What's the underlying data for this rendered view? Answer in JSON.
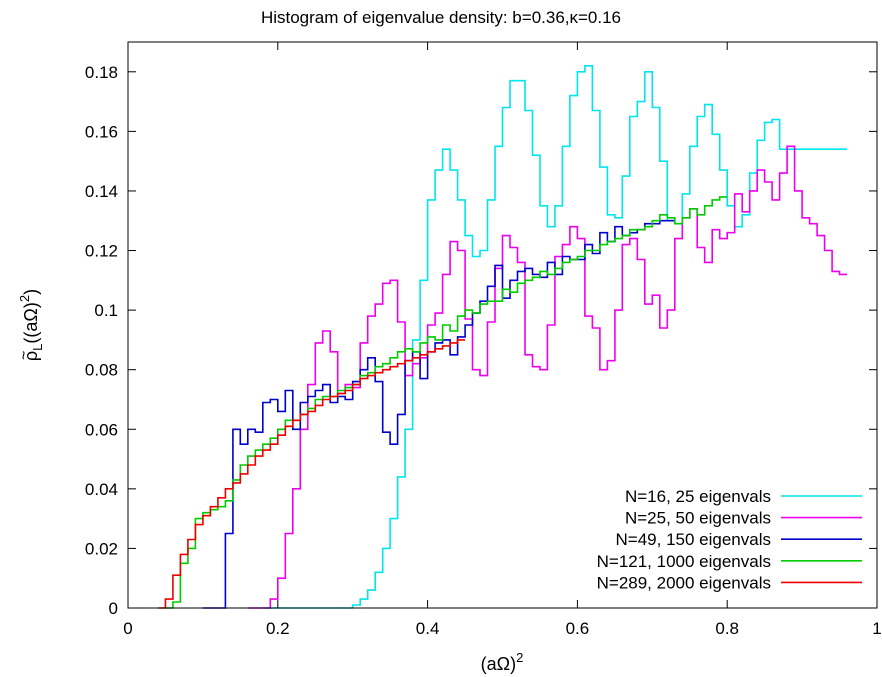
{
  "chart_data": {
    "type": "line",
    "title": "Histogram of eigenvalue density: b=0.36,κ=0.16",
    "xlabel_base": "(aΩ)",
    "xlabel_sup": "2",
    "ylabel_rho": "ρ",
    "ylabel_sub": "L",
    "ylabel_arg": "((aΩ)",
    "ylabel_sup": "2",
    "ylabel_close": ")",
    "xlim": [
      0,
      1
    ],
    "ylim": [
      0,
      0.19
    ],
    "xticks": [
      0,
      0.2,
      0.4,
      0.6,
      0.8,
      1
    ],
    "xtick_labels": [
      "0",
      "0.2",
      "0.4",
      "0.6",
      "0.8",
      "1"
    ],
    "yticks": [
      0,
      0.02,
      0.04,
      0.06,
      0.08,
      0.1,
      0.12,
      0.14,
      0.16,
      0.18
    ],
    "ytick_labels": [
      "0",
      "0.02",
      "0.04",
      "0.06",
      "0.08",
      "0.1",
      "0.12",
      "0.14",
      "0.16",
      "0.18"
    ],
    "grid": false,
    "legend_position": "bottom-right",
    "series": [
      {
        "name": "N=16, 25 eigenvals",
        "color": "#00e5ee",
        "step": "post",
        "x": [
          0.18,
          0.3,
          0.31,
          0.32,
          0.33,
          0.34,
          0.35,
          0.36,
          0.37,
          0.38,
          0.39,
          0.4,
          0.41,
          0.42,
          0.43,
          0.44,
          0.45,
          0.46,
          0.47,
          0.48,
          0.49,
          0.5,
          0.51,
          0.52,
          0.53,
          0.54,
          0.55,
          0.56,
          0.57,
          0.58,
          0.59,
          0.6,
          0.61,
          0.62,
          0.63,
          0.64,
          0.65,
          0.66,
          0.67,
          0.68,
          0.69,
          0.7,
          0.71,
          0.72,
          0.73,
          0.74,
          0.75,
          0.76,
          0.77,
          0.78,
          0.79,
          0.8,
          0.81,
          0.82,
          0.83,
          0.84,
          0.85,
          0.86,
          0.87,
          0.88,
          0.89,
          0.9,
          0.91,
          0.92,
          0.93,
          0.94,
          0.95
        ],
        "y": [
          0,
          0.001,
          0.003,
          0.006,
          0.012,
          0.02,
          0.03,
          0.044,
          0.06,
          0.09,
          0.11,
          0.137,
          0.147,
          0.154,
          0.147,
          0.137,
          0.125,
          0.118,
          0.12,
          0.137,
          0.155,
          0.168,
          0.177,
          0.177,
          0.167,
          0.152,
          0.135,
          0.128,
          0.135,
          0.155,
          0.172,
          0.18,
          0.182,
          0.167,
          0.148,
          0.132,
          0.131,
          0.145,
          0.165,
          0.17,
          0.18,
          0.168,
          0.15,
          0.13,
          0.129,
          0.139,
          0.155,
          0.165,
          0.169,
          0.159,
          0.147,
          0.135,
          0.128,
          0.132,
          0.146,
          0.157,
          0.163,
          0.164,
          0.154,
          0.154,
          0.154,
          0.154,
          0.154,
          0.154,
          0.154,
          0.154,
          0.154
        ]
      },
      {
        "name": "N=25, 50 eigenvals",
        "color": "#ee00ee",
        "step": "post",
        "x": [
          0.16,
          0.19,
          0.2,
          0.21,
          0.22,
          0.23,
          0.24,
          0.25,
          0.26,
          0.27,
          0.28,
          0.29,
          0.3,
          0.31,
          0.32,
          0.33,
          0.34,
          0.35,
          0.36,
          0.37,
          0.38,
          0.39,
          0.4,
          0.41,
          0.42,
          0.43,
          0.44,
          0.45,
          0.46,
          0.47,
          0.48,
          0.49,
          0.5,
          0.51,
          0.52,
          0.53,
          0.54,
          0.55,
          0.56,
          0.57,
          0.58,
          0.59,
          0.6,
          0.61,
          0.62,
          0.63,
          0.64,
          0.65,
          0.66,
          0.67,
          0.68,
          0.69,
          0.7,
          0.71,
          0.72,
          0.73,
          0.74,
          0.75,
          0.76,
          0.77,
          0.78,
          0.79,
          0.8,
          0.81,
          0.82,
          0.83,
          0.84,
          0.85,
          0.86,
          0.87,
          0.88,
          0.89,
          0.9,
          0.91,
          0.92,
          0.93,
          0.94,
          0.95
        ],
        "y": [
          0,
          0.003,
          0.01,
          0.025,
          0.04,
          0.06,
          0.075,
          0.089,
          0.093,
          0.086,
          0.072,
          0.075,
          0.074,
          0.089,
          0.098,
          0.102,
          0.109,
          0.11,
          0.096,
          0.078,
          0.082,
          0.084,
          0.095,
          0.099,
          0.112,
          0.123,
          0.12,
          0.097,
          0.08,
          0.078,
          0.096,
          0.114,
          0.125,
          0.121,
          0.116,
          0.085,
          0.081,
          0.08,
          0.095,
          0.118,
          0.122,
          0.128,
          0.124,
          0.098,
          0.094,
          0.08,
          0.083,
          0.1,
          0.122,
          0.124,
          0.117,
          0.102,
          0.105,
          0.094,
          0.1,
          0.124,
          0.131,
          0.134,
          0.121,
          0.116,
          0.127,
          0.124,
          0.126,
          0.139,
          0.133,
          0.14,
          0.147,
          0.143,
          0.137,
          0.146,
          0.155,
          0.14,
          0.131,
          0.129,
          0.125,
          0.12,
          0.113,
          0.112
        ]
      },
      {
        "name": "N=49, 150 eigenvals",
        "color": "#0000cc",
        "step": "post",
        "x": [
          0.1,
          0.13,
          0.14,
          0.15,
          0.16,
          0.17,
          0.18,
          0.19,
          0.2,
          0.21,
          0.22,
          0.23,
          0.24,
          0.25,
          0.26,
          0.27,
          0.28,
          0.29,
          0.3,
          0.31,
          0.32,
          0.33,
          0.34,
          0.35,
          0.36,
          0.37,
          0.38,
          0.39,
          0.4,
          0.41,
          0.42,
          0.43,
          0.44,
          0.45,
          0.46,
          0.47,
          0.48,
          0.49,
          0.5,
          0.51,
          0.52,
          0.53,
          0.54,
          0.55,
          0.56,
          0.57,
          0.58,
          0.59,
          0.6,
          0.61,
          0.62,
          0.63,
          0.64,
          0.65,
          0.66,
          0.67,
          0.68,
          0.69,
          0.7,
          0.71,
          0.72
        ],
        "y": [
          0,
          0.025,
          0.06,
          0.055,
          0.06,
          0.059,
          0.069,
          0.07,
          0.066,
          0.073,
          0.06,
          0.069,
          0.071,
          0.073,
          0.075,
          0.069,
          0.071,
          0.07,
          0.076,
          0.08,
          0.084,
          0.076,
          0.059,
          0.055,
          0.065,
          0.083,
          0.086,
          0.077,
          0.086,
          0.089,
          0.09,
          0.085,
          0.091,
          0.095,
          0.099,
          0.103,
          0.108,
          0.115,
          0.104,
          0.11,
          0.113,
          0.114,
          0.112,
          0.111,
          0.116,
          0.112,
          0.118,
          0.117,
          0.117,
          0.122,
          0.119,
          0.126,
          0.123,
          0.128,
          0.125,
          0.126,
          0.127,
          0.129,
          0.129,
          0.13,
          0.13
        ]
      },
      {
        "name": "N=121, 1000 eigenvals",
        "color": "#00cc00",
        "step": "post",
        "x": [
          0.05,
          0.06,
          0.07,
          0.08,
          0.09,
          0.1,
          0.11,
          0.12,
          0.13,
          0.14,
          0.15,
          0.16,
          0.17,
          0.18,
          0.19,
          0.2,
          0.21,
          0.22,
          0.23,
          0.24,
          0.25,
          0.26,
          0.27,
          0.28,
          0.29,
          0.3,
          0.31,
          0.32,
          0.33,
          0.34,
          0.35,
          0.36,
          0.37,
          0.38,
          0.39,
          0.4,
          0.41,
          0.42,
          0.43,
          0.44,
          0.45,
          0.46,
          0.47,
          0.48,
          0.49,
          0.5,
          0.51,
          0.52,
          0.53,
          0.54,
          0.55,
          0.56,
          0.57,
          0.58,
          0.59,
          0.6,
          0.61,
          0.62,
          0.63,
          0.64,
          0.65,
          0.66,
          0.67,
          0.68,
          0.69,
          0.7,
          0.71,
          0.72,
          0.73,
          0.74,
          0.75,
          0.76,
          0.77,
          0.78,
          0.79
        ],
        "y": [
          0,
          0.002,
          0.015,
          0.02,
          0.03,
          0.032,
          0.033,
          0.034,
          0.036,
          0.043,
          0.048,
          0.051,
          0.053,
          0.055,
          0.057,
          0.06,
          0.063,
          0.063,
          0.065,
          0.067,
          0.07,
          0.071,
          0.071,
          0.073,
          0.074,
          0.075,
          0.078,
          0.079,
          0.081,
          0.082,
          0.084,
          0.086,
          0.087,
          0.086,
          0.089,
          0.091,
          0.09,
          0.095,
          0.093,
          0.098,
          0.1,
          0.099,
          0.102,
          0.103,
          0.103,
          0.107,
          0.106,
          0.109,
          0.11,
          0.111,
          0.113,
          0.112,
          0.114,
          0.116,
          0.117,
          0.118,
          0.12,
          0.12,
          0.122,
          0.123,
          0.124,
          0.125,
          0.127,
          0.127,
          0.128,
          0.13,
          0.132,
          0.131,
          0.129,
          0.131,
          0.134,
          0.132,
          0.135,
          0.137,
          0.138
        ]
      },
      {
        "name": "N=289, 2000 eigenvals",
        "color": "#ee0000",
        "step": "post",
        "x": [
          0.04,
          0.05,
          0.06,
          0.07,
          0.08,
          0.09,
          0.1,
          0.11,
          0.12,
          0.13,
          0.14,
          0.15,
          0.16,
          0.17,
          0.18,
          0.19,
          0.2,
          0.21,
          0.22,
          0.23,
          0.24,
          0.25,
          0.26,
          0.27,
          0.28,
          0.29,
          0.3,
          0.31,
          0.32,
          0.33,
          0.34,
          0.35,
          0.36,
          0.37,
          0.38,
          0.39,
          0.4,
          0.41,
          0.42,
          0.43,
          0.44
        ],
        "y": [
          0,
          0.003,
          0.011,
          0.018,
          0.023,
          0.028,
          0.031,
          0.034,
          0.037,
          0.04,
          0.042,
          0.045,
          0.048,
          0.051,
          0.053,
          0.055,
          0.058,
          0.061,
          0.063,
          0.065,
          0.066,
          0.068,
          0.07,
          0.071,
          0.072,
          0.073,
          0.075,
          0.077,
          0.078,
          0.079,
          0.08,
          0.081,
          0.082,
          0.083,
          0.084,
          0.085,
          0.086,
          0.087,
          0.088,
          0.089,
          0.09
        ]
      }
    ]
  }
}
